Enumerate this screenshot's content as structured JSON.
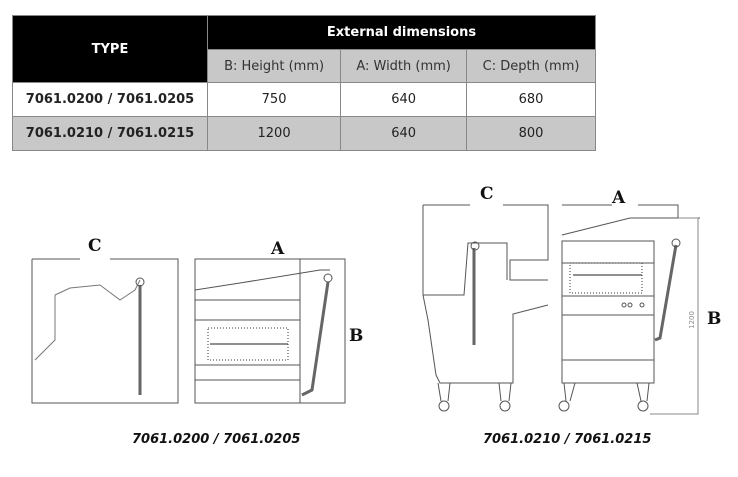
{
  "table": {
    "type_header": "TYPE",
    "group_header": "External dimensions",
    "columns": [
      "B: Height (mm)",
      "A: Width (mm)",
      "C: Depth (mm)"
    ],
    "rows": [
      {
        "type": "7061.0200 / 7061.0205",
        "height": "750",
        "width": "640",
        "depth": "680"
      },
      {
        "type": "7061.0210 / 7061.0215",
        "height": "1200",
        "width": "640",
        "depth": "800"
      }
    ]
  },
  "drawings": {
    "small": {
      "label_c": "C",
      "label_a": "A",
      "label_b": "B",
      "caption": "7061.0200 / 7061.0205"
    },
    "large": {
      "label_c": "C",
      "label_a": "A",
      "label_b": "B",
      "dimension": "1200",
      "caption": "7061.0210 / 7061.0215"
    }
  }
}
